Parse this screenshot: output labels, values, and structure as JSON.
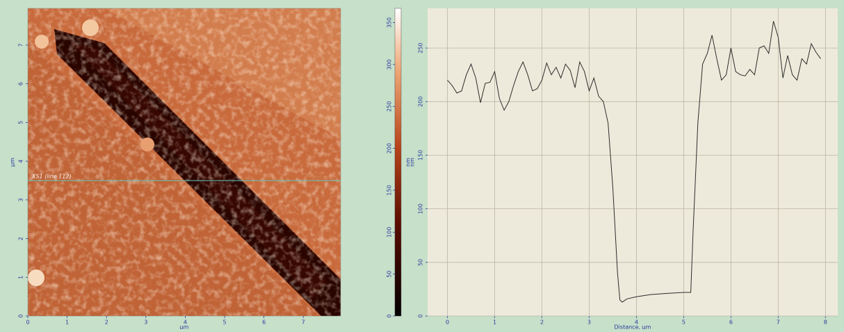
{
  "chart_data": [
    {
      "type": "image",
      "xlabel": "µm",
      "ylabel": "µm",
      "xlim": [
        0,
        7.95
      ],
      "ylim": [
        0,
        7.95
      ],
      "xticks": [
        0,
        1,
        2,
        3,
        4,
        5,
        6,
        7
      ],
      "yticks": [
        0,
        1,
        2,
        3,
        4,
        5,
        6,
        7
      ],
      "scan_line_y": 3.5,
      "annotation": "XS1 (line 112)",
      "line_color": "#5fc9c0"
    },
    {
      "type": "colorbar",
      "ylabel": "nm",
      "ylim": [
        0,
        367
      ],
      "yticks": [
        0,
        50,
        100,
        150,
        200,
        250,
        300,
        350
      ]
    },
    {
      "type": "line",
      "xlabel": "Distance, µm",
      "ylabel": "nm",
      "xlim": [
        -0.42,
        8.26
      ],
      "ylim": [
        0,
        287
      ],
      "xticks": [
        0,
        1,
        2,
        3,
        4,
        5,
        6,
        7,
        8
      ],
      "yticks": [
        0,
        50,
        100,
        150,
        200,
        250
      ],
      "grid": true,
      "color": "#2b2b2b",
      "x": [
        0,
        0.1,
        0.2,
        0.3,
        0.4,
        0.5,
        0.6,
        0.7,
        0.8,
        0.9,
        1.0,
        1.1,
        1.2,
        1.3,
        1.4,
        1.5,
        1.6,
        1.7,
        1.8,
        1.9,
        2.0,
        2.1,
        2.2,
        2.3,
        2.4,
        2.5,
        2.6,
        2.7,
        2.8,
        2.9,
        3.0,
        3.1,
        3.2,
        3.3,
        3.4,
        3.5,
        3.6,
        3.65,
        3.7,
        3.8,
        4.0,
        4.3,
        4.6,
        5.0,
        5.15,
        5.2,
        5.3,
        5.4,
        5.5,
        5.6,
        5.7,
        5.8,
        5.9,
        6.0,
        6.1,
        6.2,
        6.3,
        6.4,
        6.5,
        6.6,
        6.7,
        6.8,
        6.9,
        7.0,
        7.1,
        7.2,
        7.3,
        7.4,
        7.5,
        7.6,
        7.7,
        7.8,
        7.9
      ],
      "values": [
        220,
        215,
        208,
        210,
        225,
        235,
        222,
        199,
        217,
        218,
        228,
        203,
        192,
        200,
        215,
        228,
        237,
        225,
        210,
        212,
        220,
        236,
        225,
        232,
        222,
        235,
        229,
        213,
        237,
        228,
        210,
        222,
        205,
        200,
        180,
        120,
        40,
        15,
        13,
        16,
        18,
        20,
        21,
        22,
        22,
        80,
        180,
        235,
        245,
        262,
        240,
        220,
        225,
        250,
        228,
        225,
        224,
        230,
        225,
        250,
        252,
        245,
        275,
        260,
        222,
        243,
        225,
        220,
        240,
        235,
        254,
        246,
        240
      ]
    }
  ]
}
